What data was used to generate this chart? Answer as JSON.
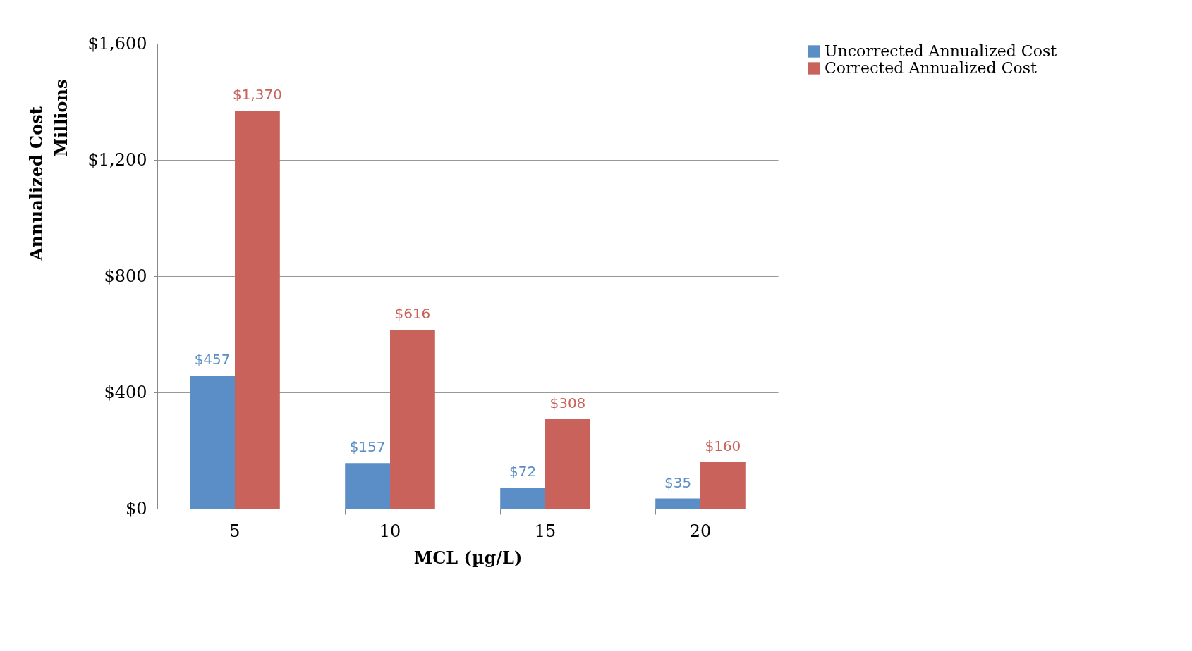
{
  "chart_data": {
    "type": "bar",
    "xlabel": "MCL (µg/L)",
    "ylabel": "Annualized Cost",
    "annotations": [
      "Millions"
    ],
    "categories": [
      "5",
      "10",
      "15",
      "20"
    ],
    "series": [
      {
        "name": "Uncorrected Annualized Cost",
        "color": "#5b8ec6",
        "values": [
          457,
          157,
          72,
          35
        ],
        "value_labels": [
          "$457",
          "$157",
          "$72",
          "$35"
        ]
      },
      {
        "name": "Corrected Annualized Cost",
        "color": "#c8625a",
        "values": [
          1370,
          616,
          308,
          160
        ],
        "value_labels": [
          "$1,370",
          "$616",
          "$308",
          "$160"
        ]
      }
    ],
    "ylim": [
      0,
      1600
    ],
    "yticks": [
      {
        "value": 0,
        "label": "$0"
      },
      {
        "value": 400,
        "label": "$400"
      },
      {
        "value": 800,
        "label": "$800"
      },
      {
        "value": 1200,
        "label": "$1,200"
      },
      {
        "value": 1600,
        "label": "$1,600"
      }
    ],
    "grid": "y",
    "legend": "right"
  }
}
